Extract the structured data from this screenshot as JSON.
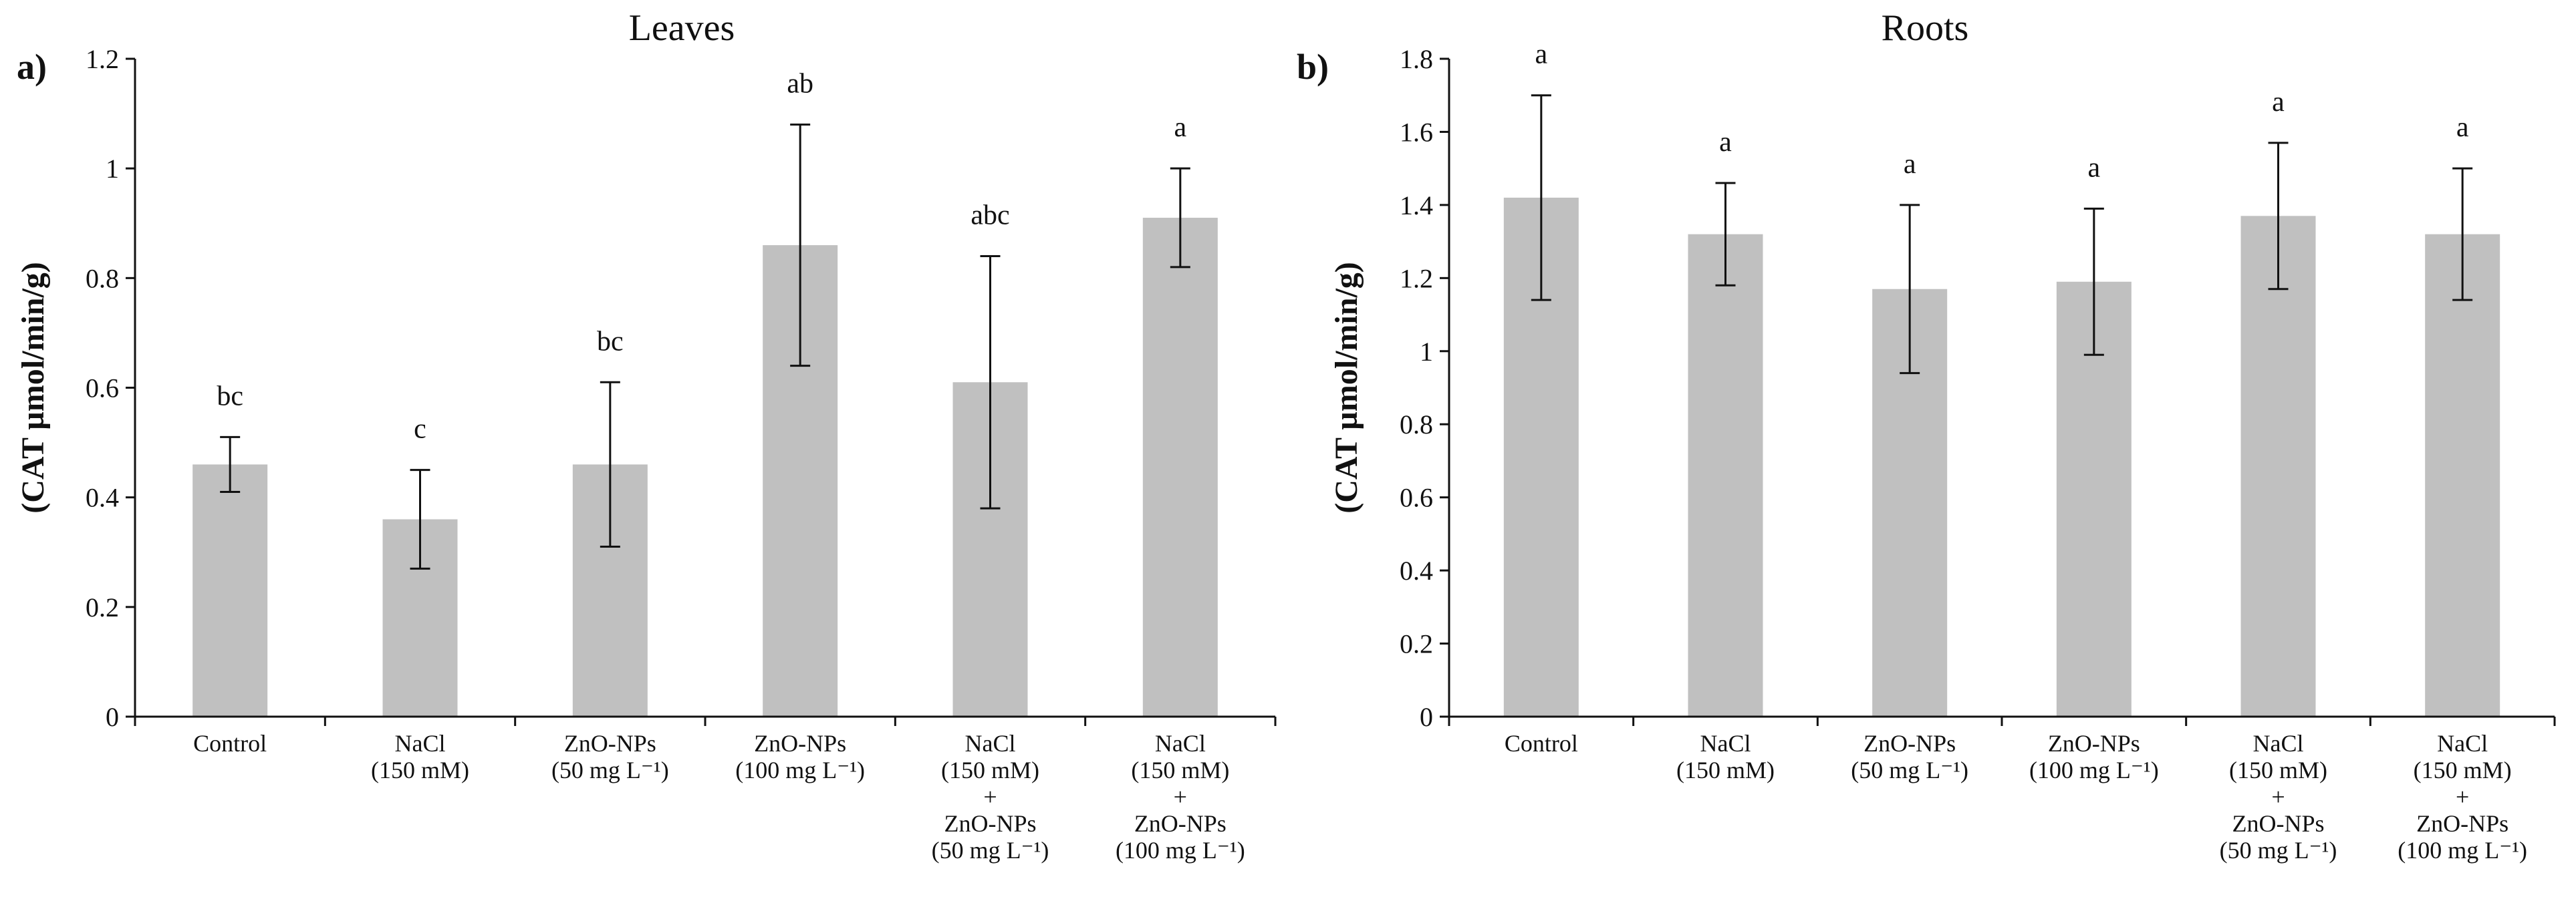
{
  "colors": {
    "bar": "#c0c0c0",
    "axis": "#111111"
  },
  "chart_data": [
    {
      "type": "bar",
      "panel_label": "a)",
      "title": "Leaves",
      "xlabel": "",
      "ylabel": "(CAT  µmol/min/g)",
      "ylim": [
        0,
        1.2
      ],
      "yticks": [
        0,
        0.2,
        0.4,
        0.6,
        0.8,
        1,
        1.2
      ],
      "ytick_labels": [
        "0",
        "0.2",
        "0.4",
        "0.6",
        "0.8",
        "1",
        "1.2"
      ],
      "categories": [
        [
          "Control"
        ],
        [
          "NaCl",
          "(150 mM)"
        ],
        [
          "ZnO-NPs",
          "(50 mg L⁻¹)"
        ],
        [
          "ZnO-NPs",
          "(100 mg L⁻¹)"
        ],
        [
          "NaCl",
          "(150 mM)",
          "+",
          "ZnO-NPs",
          "(50 mg L⁻¹)"
        ],
        [
          "NaCl",
          "(150 mM)",
          "+",
          "ZnO-NPs",
          "(100 mg L⁻¹)"
        ]
      ],
      "values": [
        0.46,
        0.36,
        0.46,
        0.86,
        0.61,
        0.91
      ],
      "error_low": [
        0.41,
        0.27,
        0.31,
        0.64,
        0.38,
        0.82
      ],
      "error_high": [
        0.51,
        0.45,
        0.61,
        1.08,
        0.84,
        1.0
      ],
      "significance": [
        "bc",
        "c",
        "bc",
        "ab",
        "abc",
        "a"
      ]
    },
    {
      "type": "bar",
      "panel_label": "b)",
      "title": "Roots",
      "xlabel": "",
      "ylabel": "(CAT  µmol/min/g)",
      "ylim": [
        0,
        1.8
      ],
      "yticks": [
        0,
        0.2,
        0.4,
        0.6,
        0.8,
        1,
        1.2,
        1.4,
        1.6,
        1.8
      ],
      "ytick_labels": [
        "0",
        "0.2",
        "0.4",
        "0.6",
        "0.8",
        "1",
        "1.2",
        "1.4",
        "1.6",
        "1.8"
      ],
      "categories": [
        [
          "Control"
        ],
        [
          "NaCl",
          "(150 mM)"
        ],
        [
          "ZnO-NPs",
          "(50 mg L⁻¹)"
        ],
        [
          "ZnO-NPs",
          "(100 mg L⁻¹)"
        ],
        [
          "NaCl",
          "(150 mM)",
          "+",
          "ZnO-NPs",
          "(50 mg L⁻¹)"
        ],
        [
          "NaCl",
          "(150 mM)",
          "+",
          "ZnO-NPs",
          "(100 mg L⁻¹)"
        ]
      ],
      "values": [
        1.42,
        1.32,
        1.17,
        1.19,
        1.37,
        1.32
      ],
      "error_low": [
        1.14,
        1.18,
        0.94,
        0.99,
        1.17,
        1.14
      ],
      "error_high": [
        1.7,
        1.46,
        1.4,
        1.39,
        1.57,
        1.5
      ],
      "significance": [
        "a",
        "a",
        "a",
        "a",
        "a",
        "a"
      ]
    }
  ]
}
